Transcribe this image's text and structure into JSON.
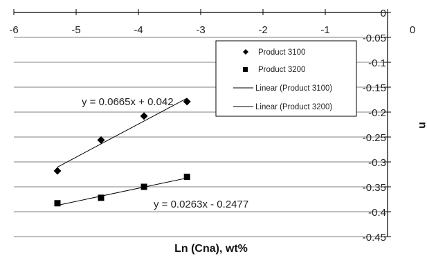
{
  "chart_data": {
    "type": "scatter",
    "title": "",
    "xlabel": "Ln (Cna), wt%",
    "ylabel": "n",
    "xlim": [
      -6,
      0
    ],
    "ylim": [
      -0.45,
      0
    ],
    "x_ticks": [
      "-6",
      "-5",
      "-4",
      "-3",
      "-2",
      "-1",
      "0"
    ],
    "y_ticks": [
      "0",
      "-0.05",
      "-0.1",
      "-0.15",
      "-0.2",
      "-0.25",
      "-0.3",
      "-0.35",
      "-0.4",
      "-0.45"
    ],
    "grid": "horizontal",
    "legend_position": "top-right",
    "series": [
      {
        "name": "Product 3100",
        "marker": "diamond",
        "color": "#000000",
        "x": [
          -5.3,
          -4.6,
          -3.91,
          -3.22
        ],
        "y": [
          -0.318,
          -0.256,
          -0.208,
          -0.179
        ]
      },
      {
        "name": "Product 3200",
        "marker": "square",
        "color": "#000000",
        "x": [
          -5.3,
          -4.6,
          -3.91,
          -3.22
        ],
        "y": [
          -0.383,
          -0.372,
          -0.35,
          -0.33
        ]
      }
    ],
    "trendlines": [
      {
        "name": "Linear (Product 3100)",
        "slope": 0.0665,
        "intercept": 0.042,
        "x_range": [
          -5.3,
          -3.22
        ],
        "equation": "y = 0.0665x + 0.042"
      },
      {
        "name": "Linear (Product 3200)",
        "slope": 0.0263,
        "intercept": -0.2477,
        "x_range": [
          -5.3,
          -3.22
        ],
        "equation": "y = 0.0263x - 0.2477"
      }
    ]
  }
}
